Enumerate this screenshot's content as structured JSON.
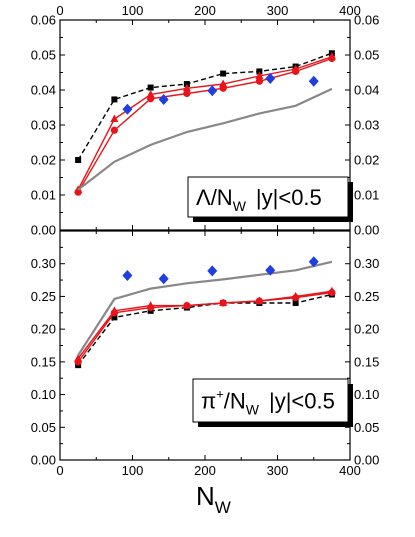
{
  "chart_data": [
    {
      "type": "line",
      "label": {
        "main": "Λ/N",
        "sub": "W",
        "cut": "|y|<0.5"
      },
      "xlim": [
        0,
        400
      ],
      "ylim": [
        0.0,
        0.06
      ],
      "x_ticks": [
        "0",
        "100",
        "200",
        "300",
        "400"
      ],
      "y_ticks": [
        "0.00",
        "0.01",
        "0.02",
        "0.03",
        "0.04",
        "0.05",
        "0.06"
      ],
      "grid": false,
      "series": [
        {
          "style": "black-dashed-squares",
          "color": "#000000",
          "x": [
            25,
            75,
            125,
            175,
            225,
            275,
            325,
            375
          ],
          "y": [
            0.02,
            0.0373,
            0.0407,
            0.0417,
            0.0447,
            0.0453,
            0.0467,
            0.0505
          ]
        },
        {
          "style": "red-triangles",
          "color": "#e8141a",
          "x": [
            25,
            75,
            125,
            175,
            225,
            275,
            325,
            375
          ],
          "y": [
            0.0115,
            0.0317,
            0.0387,
            0.0405,
            0.0417,
            0.044,
            0.046,
            0.0495
          ]
        },
        {
          "style": "red-circles",
          "color": "#e8141a",
          "x": [
            25,
            75,
            125,
            175,
            225,
            275,
            325,
            375
          ],
          "y": [
            0.0108,
            0.0285,
            0.0375,
            0.039,
            0.0405,
            0.0425,
            0.0453,
            0.049
          ]
        },
        {
          "style": "gray-line",
          "color": "#888888",
          "x": [
            25,
            75,
            125,
            175,
            225,
            275,
            325,
            375
          ],
          "y": [
            0.0115,
            0.0195,
            0.0243,
            0.028,
            0.0305,
            0.0333,
            0.0355,
            0.0403
          ]
        },
        {
          "style": "blue-diamonds",
          "color": "#1f3fe0",
          "x": [
            93,
            143,
            210,
            290,
            350
          ],
          "y": [
            0.0345,
            0.0373,
            0.0398,
            0.0433,
            0.0425
          ]
        }
      ]
    },
    {
      "type": "line",
      "label": {
        "main": "π",
        "sup": "+",
        "sub": "W",
        "cut": "|y|<0.5"
      },
      "xlim": [
        0,
        400
      ],
      "ylim": [
        0.0,
        0.35
      ],
      "x_ticks": [
        "0",
        "100",
        "200",
        "300",
        "400"
      ],
      "y_ticks": [
        "0.00",
        "0.05",
        "0.10",
        "0.15",
        "0.20",
        "0.25",
        "0.30"
      ],
      "xlabel": {
        "main": "N",
        "sub": "W"
      },
      "grid": false,
      "series": [
        {
          "style": "black-dashed-squares",
          "color": "#000000",
          "x": [
            25,
            75,
            125,
            175,
            225,
            275,
            325,
            375
          ],
          "y": [
            0.145,
            0.218,
            0.228,
            0.233,
            0.24,
            0.24,
            0.24,
            0.253
          ]
        },
        {
          "style": "red-triangles",
          "color": "#e8141a",
          "x": [
            25,
            75,
            125,
            175,
            225,
            275,
            325,
            375
          ],
          "y": [
            0.155,
            0.228,
            0.236,
            0.236,
            0.24,
            0.243,
            0.25,
            0.258
          ]
        },
        {
          "style": "red-circles",
          "color": "#e8141a",
          "x": [
            25,
            75,
            125,
            175,
            225,
            275,
            325,
            375
          ],
          "y": [
            0.15,
            0.225,
            0.233,
            0.236,
            0.24,
            0.243,
            0.248,
            0.256
          ]
        },
        {
          "style": "gray-line",
          "color": "#888888",
          "x": [
            25,
            75,
            125,
            175,
            225,
            275,
            325,
            375
          ],
          "y": [
            0.16,
            0.246,
            0.262,
            0.27,
            0.276,
            0.283,
            0.29,
            0.303
          ]
        },
        {
          "style": "blue-diamonds",
          "color": "#1f3fe0",
          "x": [
            93,
            143,
            210,
            290,
            350
          ],
          "y": [
            0.282,
            0.277,
            0.289,
            0.29,
            0.303
          ]
        }
      ]
    }
  ]
}
